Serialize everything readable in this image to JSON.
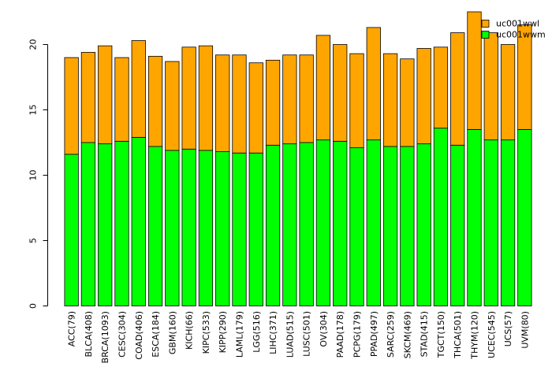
{
  "chart_data": {
    "type": "bar",
    "stacked": true,
    "title": "",
    "xlabel": "",
    "ylabel": "",
    "ylim": [
      0,
      22.5
    ],
    "yticks": [
      0,
      5,
      10,
      15,
      20
    ],
    "grid": false,
    "legend_position": "top-right",
    "categories": [
      "ACC(79)",
      "BLCA(408)",
      "BRCA(1093)",
      "CESC(304)",
      "COAD(406)",
      "ESCA(184)",
      "GBM(160)",
      "KICH(66)",
      "KIPC(533)",
      "KIPP(290)",
      "LAML(179)",
      "LGG(516)",
      "LIHC(371)",
      "LUAD(515)",
      "LUSC(501)",
      "OV(304)",
      "PAAD(178)",
      "PCPG(179)",
      "PPAD(497)",
      "SARC(259)",
      "SKCM(469)",
      "STAD(415)",
      "TGCT(150)",
      "THCA(501)",
      "THYM(120)",
      "UCEC(545)",
      "UCS(57)",
      "UVM(80)"
    ],
    "series": [
      {
        "name": "uc001wwm",
        "color": "#00ff00",
        "values": [
          11.6,
          12.5,
          12.4,
          12.6,
          12.9,
          12.2,
          11.9,
          12.0,
          11.9,
          11.8,
          11.7,
          11.7,
          12.3,
          12.4,
          12.5,
          12.7,
          12.6,
          12.1,
          12.7,
          12.2,
          12.2,
          12.4,
          13.6,
          12.3,
          13.5,
          12.7,
          12.7,
          13.5
        ]
      },
      {
        "name": "uc001wwl",
        "color": "#ffa500",
        "values": [
          7.4,
          6.9,
          7.5,
          6.4,
          7.4,
          6.9,
          6.8,
          7.8,
          8.0,
          7.4,
          7.5,
          6.9,
          6.5,
          6.8,
          6.7,
          8.0,
          7.4,
          7.2,
          8.6,
          7.1,
          6.7,
          7.3,
          6.2,
          8.6,
          9.0,
          8.2,
          7.3,
          8.0
        ]
      }
    ]
  }
}
